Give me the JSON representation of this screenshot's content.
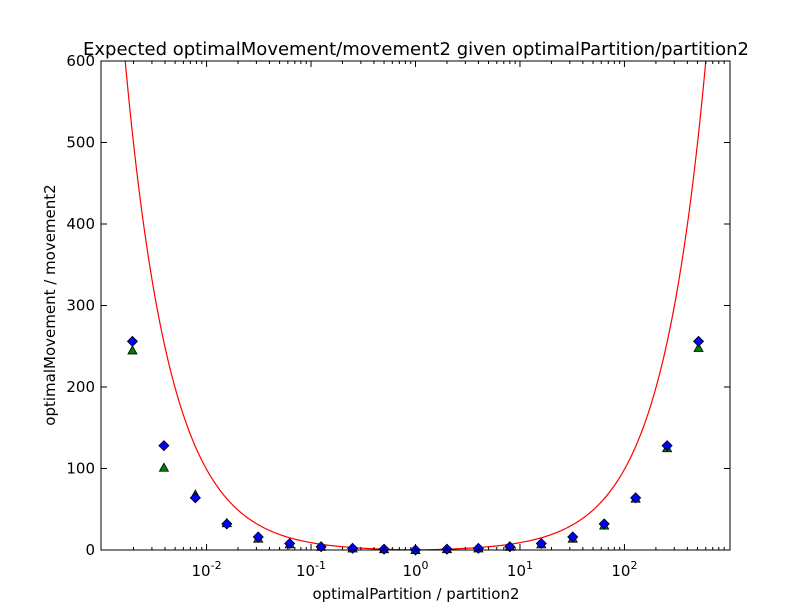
{
  "chart_data": {
    "type": "scatter",
    "title": "Expected optimalMovement/movement2 given optimalPartition/partition2",
    "xlabel": "optimalPartition / partition2",
    "ylabel": "optimalMovement / movement2",
    "x_scale": "log",
    "xlim": [
      0.0009765625,
      1024
    ],
    "ylim": [
      0,
      600
    ],
    "y_ticks": [
      0,
      100,
      200,
      300,
      400,
      500,
      600
    ],
    "x_ticks": [
      {
        "value": 0.01,
        "base": "10",
        "exp": "-2"
      },
      {
        "value": 0.1,
        "base": "10",
        "exp": "-1"
      },
      {
        "value": 1,
        "base": "10",
        "exp": "0"
      },
      {
        "value": 10,
        "base": "10",
        "exp": "1"
      },
      {
        "value": 100,
        "base": "10",
        "exp": "2"
      }
    ],
    "grid": false,
    "series": [
      {
        "kind": "diamond",
        "color": "#0000ff",
        "x": [
          0.001953125,
          0.00390625,
          0.0078125,
          0.015625,
          0.03125,
          0.0625,
          0.125,
          0.25,
          0.5,
          1,
          2,
          4,
          8,
          16,
          32,
          64,
          128,
          256,
          512
        ],
        "values": [
          256,
          128,
          64,
          32,
          16,
          8,
          4,
          2,
          1,
          0,
          1,
          2,
          4,
          8,
          16,
          32,
          64,
          128,
          256
        ]
      },
      {
        "kind": "triangle",
        "color": "#008000",
        "x": [
          0.001953125,
          0.00390625,
          0.0078125,
          0.015625,
          0.03125,
          0.0625,
          0.125,
          0.25,
          0.5,
          1,
          2,
          4,
          8,
          16,
          32,
          64,
          128,
          256,
          512
        ],
        "values": [
          245,
          101,
          68,
          33,
          14,
          7,
          4,
          2,
          1,
          0,
          1,
          2,
          4,
          7,
          14,
          30,
          63,
          125,
          248
        ]
      },
      {
        "kind": "line",
        "color": "#ff0000",
        "formula": "max(x, 1/x) - 1"
      }
    ]
  }
}
